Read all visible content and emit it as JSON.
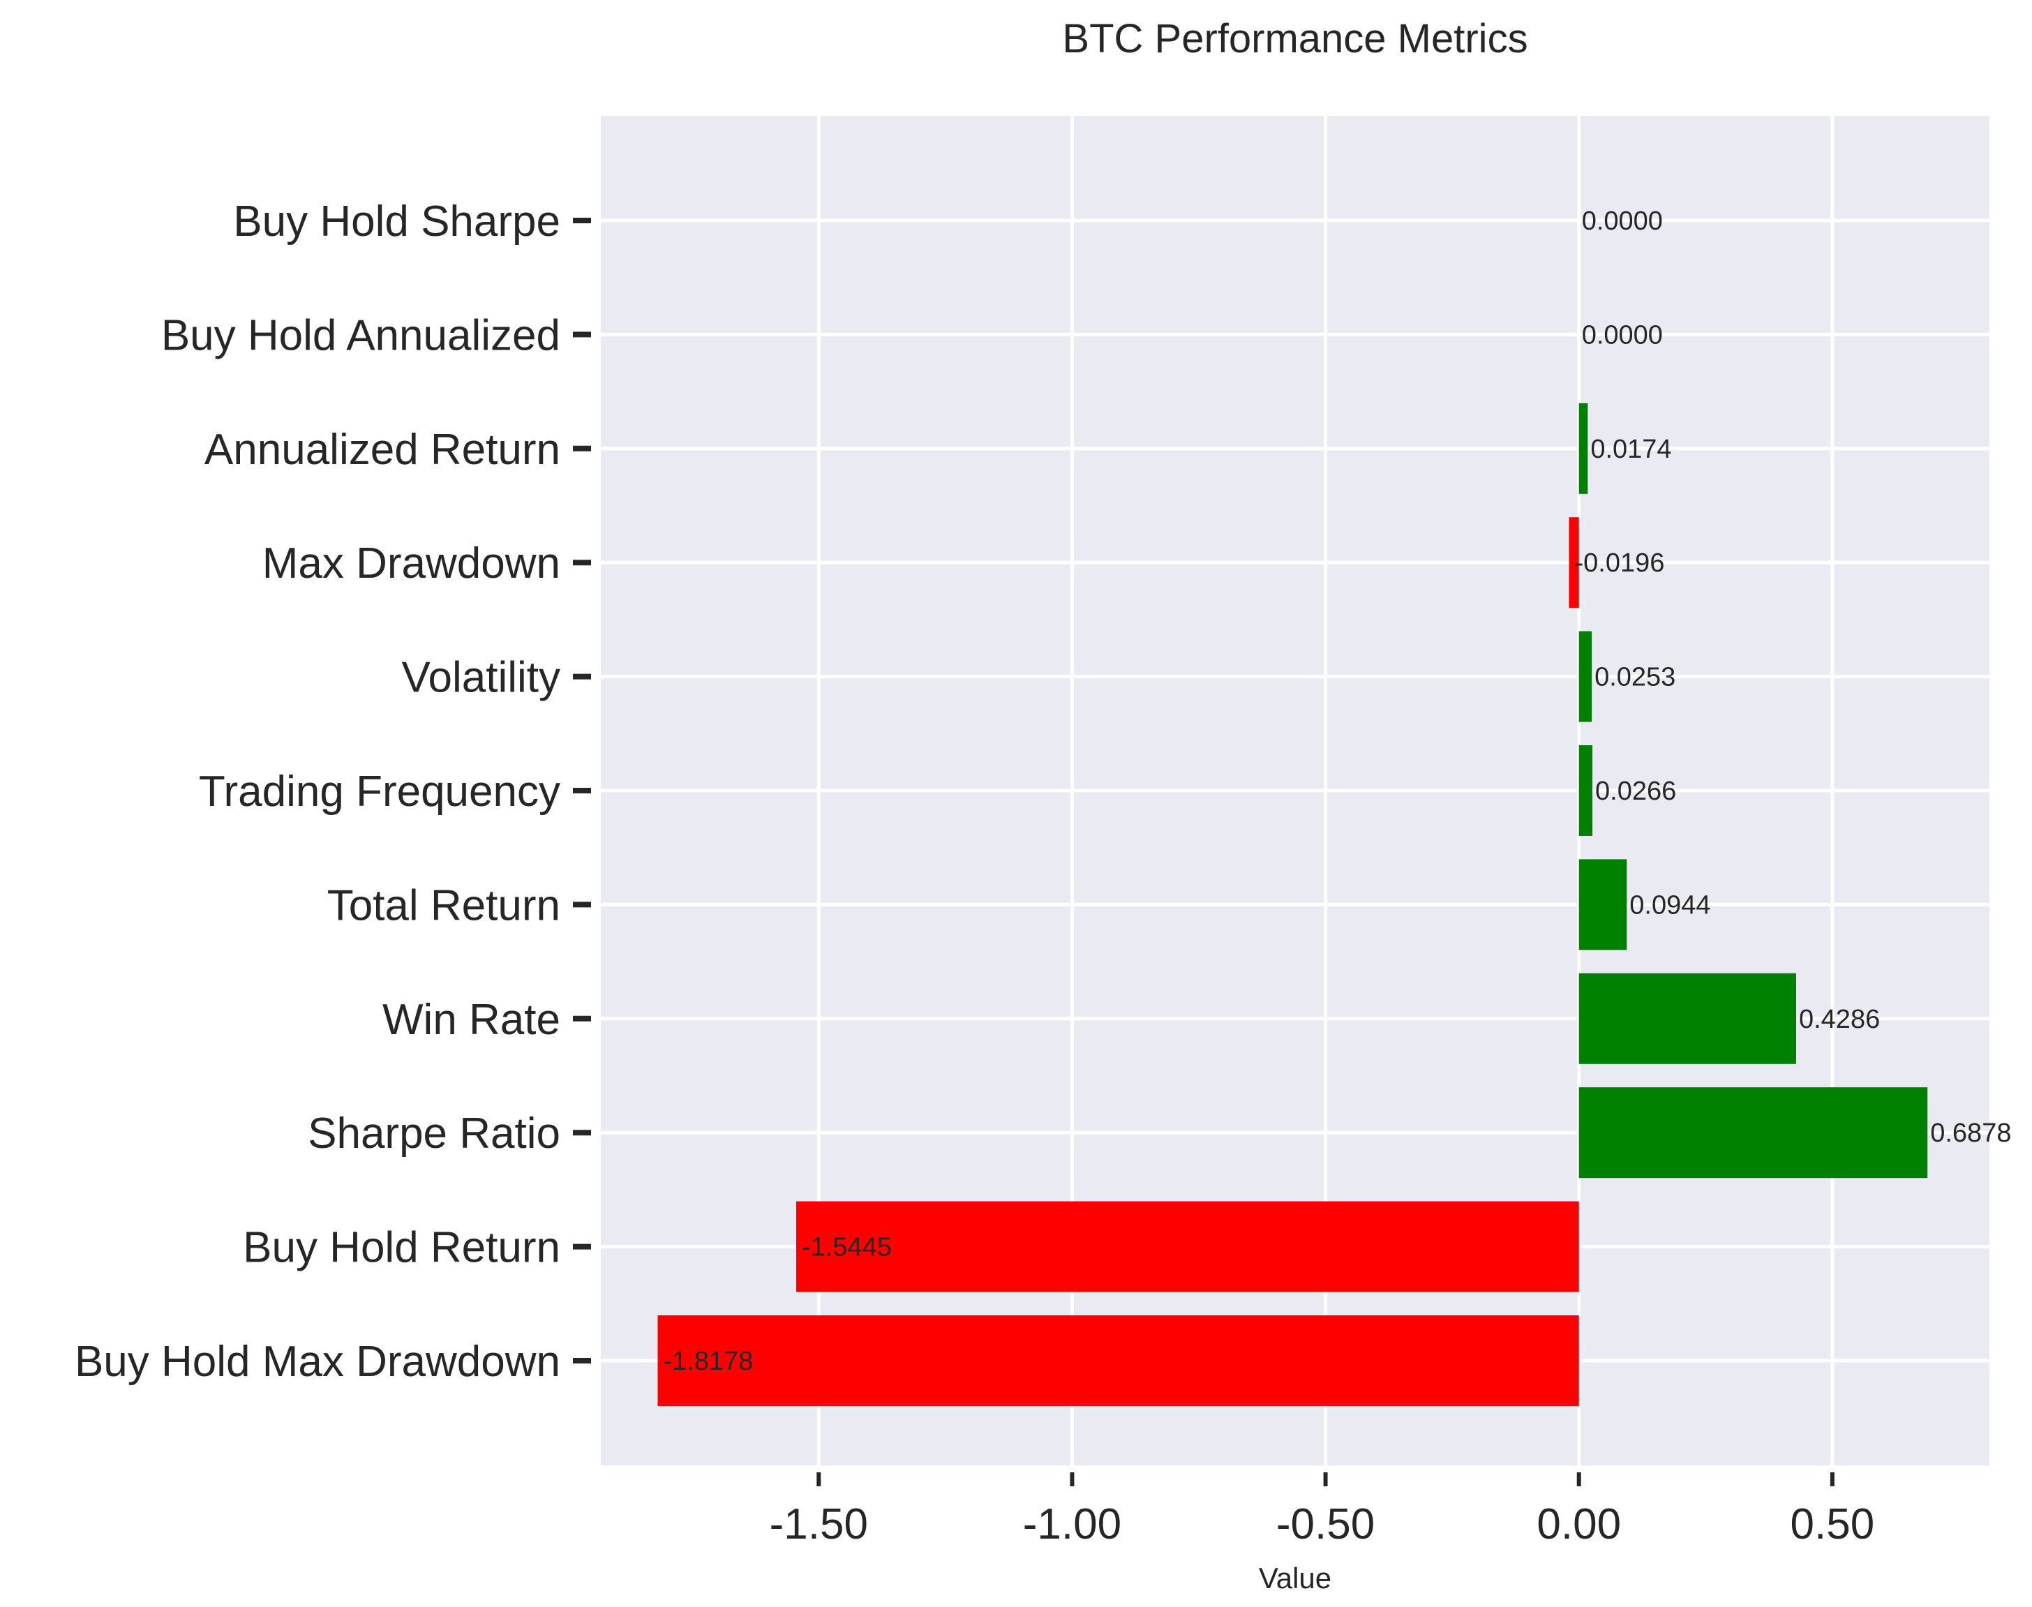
{
  "chart_data": {
    "type": "bar",
    "orientation": "horizontal",
    "title": "BTC Performance Metrics",
    "xlabel": "Value",
    "ylabel": "",
    "xlim": [
      -1.93,
      0.81
    ],
    "xticks": [
      -1.5,
      -1.0,
      -0.5,
      0.0,
      0.5
    ],
    "xtick_labels": [
      "-1.50",
      "-1.00",
      "-0.50",
      "0.00",
      "0.50"
    ],
    "grid": true,
    "legend": "none",
    "colors": {
      "positive": "#008000",
      "negative": "#ff0000",
      "background": "#eaeaf2",
      "grid": "#ffffff"
    },
    "categories": [
      "Buy Hold Sharpe",
      "Buy Hold Annualized",
      "Annualized Return",
      "Max Drawdown",
      "Volatility",
      "Trading Frequency",
      "Total Return",
      "Win Rate",
      "Sharpe Ratio",
      "Buy Hold Return",
      "Buy Hold Max Drawdown"
    ],
    "values": [
      0.0,
      0.0,
      0.0174,
      -0.0196,
      0.0253,
      0.0266,
      0.0944,
      0.4286,
      0.6878,
      -1.5445,
      -1.8178
    ],
    "value_labels": [
      "0.0000",
      "0.0000",
      "0.0174",
      "-0.0196",
      "0.0253",
      "0.0266",
      "0.0944",
      "0.4286",
      "0.6878",
      "-1.5445",
      "-1.8178"
    ]
  }
}
